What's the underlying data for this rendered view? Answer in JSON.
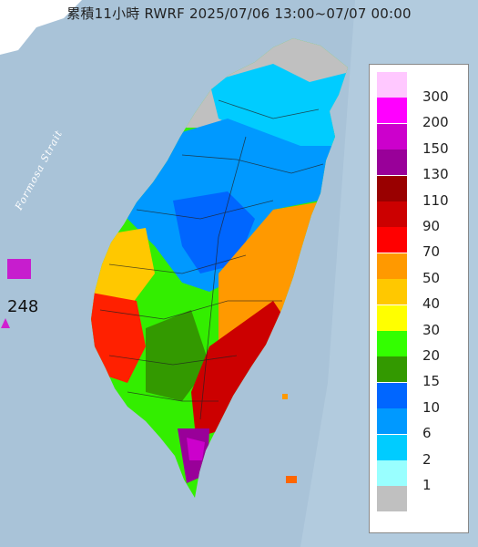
{
  "title": "累積11小時 RWRF 2025/07/06 13:00~07/07 00:00",
  "map_labels": {
    "strait": "Formosa Strait",
    "max_value": "248"
  },
  "legend": {
    "items": [
      {
        "label": "300",
        "color": "#ffc8ff"
      },
      {
        "label": "200",
        "color": "#ff00ff"
      },
      {
        "label": "150",
        "color": "#cc00cc"
      },
      {
        "label": "130",
        "color": "#990099"
      },
      {
        "label": "110",
        "color": "#990000"
      },
      {
        "label": "90",
        "color": "#cc0000"
      },
      {
        "label": "70",
        "color": "#ff0000"
      },
      {
        "label": "50",
        "color": "#ff9900"
      },
      {
        "label": "40",
        "color": "#ffc800"
      },
      {
        "label": "30",
        "color": "#ffff00"
      },
      {
        "label": "20",
        "color": "#33ff00"
      },
      {
        "label": "15",
        "color": "#339900"
      },
      {
        "label": "10",
        "color": "#0066ff"
      },
      {
        "label": "6",
        "color": "#0099ff"
      },
      {
        "label": "2",
        "color": "#00ccff"
      },
      {
        "label": "1",
        "color": "#99ffff"
      },
      {
        "label": "",
        "color": "#c0c0c0"
      }
    ]
  }
}
